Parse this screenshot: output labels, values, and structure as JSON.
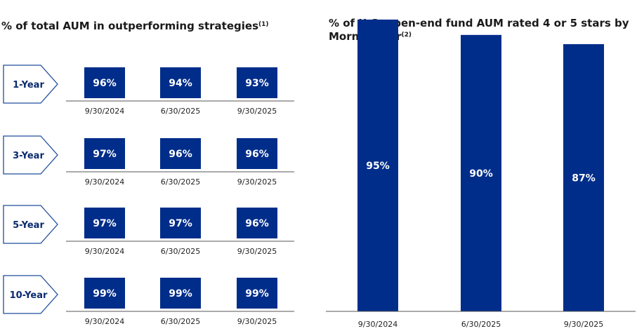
{
  "left_chart": {
    "title": "% of total AUM in outperforming strategies",
    "title_note": "(1)"
  },
  "right_chart": {
    "title": "% of U.S. open-end fund AUM rated 4 or 5 stars by Morningstar",
    "title_note": "(2)"
  },
  "colors": {
    "bar": "#002d8a",
    "chevron_border": "#1f4e9c",
    "chevron_text": "#0a2a6e",
    "axis": "#555555"
  },
  "chart_data": [
    {
      "type": "table",
      "title": "% of total AUM in outperforming strategies",
      "columns": [
        "9/30/2024",
        "6/30/2025",
        "9/30/2025"
      ],
      "rows": [
        {
          "label": "1-Year",
          "values": [
            "96%",
            "94%",
            "93%"
          ]
        },
        {
          "label": "3-Year",
          "values": [
            "97%",
            "96%",
            "96%"
          ]
        },
        {
          "label": "5-Year",
          "values": [
            "97%",
            "97%",
            "96%"
          ]
        },
        {
          "label": "10-Year",
          "values": [
            "99%",
            "99%",
            "99%"
          ]
        }
      ]
    },
    {
      "type": "bar",
      "title": "% of U.S. open-end fund AUM rated 4 or 5 stars by Morningstar",
      "categories": [
        "9/30/2024",
        "6/30/2025",
        "9/30/2025"
      ],
      "values": [
        95,
        90,
        87
      ],
      "data_labels": [
        "95%",
        "90%",
        "87%"
      ],
      "ylim": [
        0,
        100
      ]
    }
  ]
}
